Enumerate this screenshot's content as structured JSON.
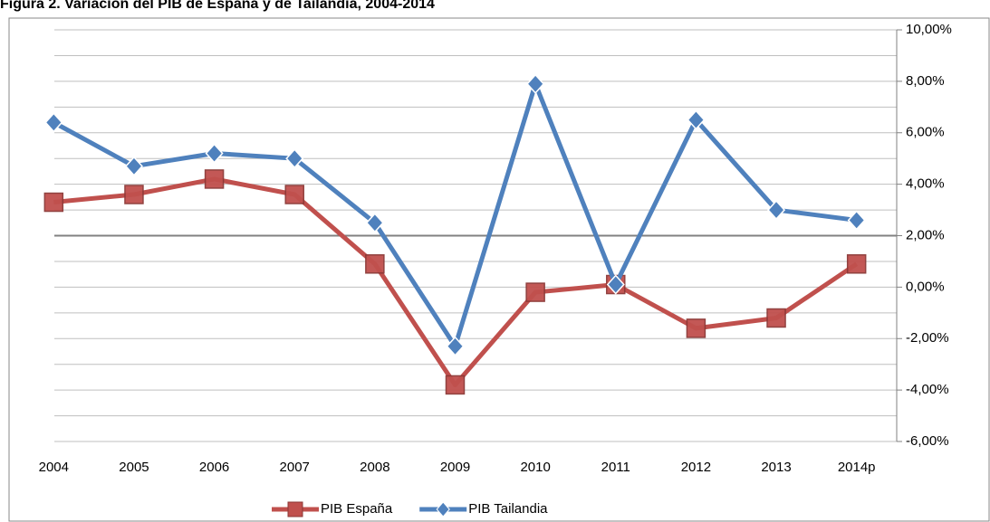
{
  "chart_data": {
    "type": "line",
    "title": "Figura 2. Variación del PIB de España y de Tailandia, 2004-2014",
    "categories": [
      "2004",
      "2005",
      "2006",
      "2007",
      "2008",
      "2009",
      "2010",
      "2011",
      "2012",
      "2013",
      "2014p"
    ],
    "series": [
      {
        "name": "PIB España",
        "color": "#c0504d",
        "marker": "square",
        "values": [
          3.3,
          3.6,
          4.2,
          3.6,
          0.9,
          -3.8,
          -0.2,
          0.1,
          -1.6,
          -1.2,
          0.9
        ]
      },
      {
        "name": "PIB Tailandia",
        "color": "#4f81bd",
        "marker": "diamond",
        "values": [
          6.4,
          4.7,
          5.2,
          5.0,
          2.5,
          -2.3,
          7.9,
          0.1,
          6.5,
          3.0,
          2.6
        ]
      }
    ],
    "ylim": [
      -6,
      10
    ],
    "yticks": [
      {
        "value": -6,
        "label": "-6,00%"
      },
      {
        "value": -4,
        "label": "-4,00%"
      },
      {
        "value": -2,
        "label": "-2,00%"
      },
      {
        "value": 0,
        "label": "0,00%"
      },
      {
        "value": 2,
        "label": "2,00%"
      },
      {
        "value": 4,
        "label": "4,00%"
      },
      {
        "value": 6,
        "label": "6,00%"
      },
      {
        "value": 8,
        "label": "8,00%"
      },
      {
        "value": 10,
        "label": "10,00%"
      }
    ],
    "minor_yticks": [
      -5,
      -3,
      -1,
      1,
      3,
      5,
      7,
      9
    ],
    "xaxis_crosses": 2,
    "y_axis_side": "right",
    "grid": true,
    "legend": "bottom"
  }
}
